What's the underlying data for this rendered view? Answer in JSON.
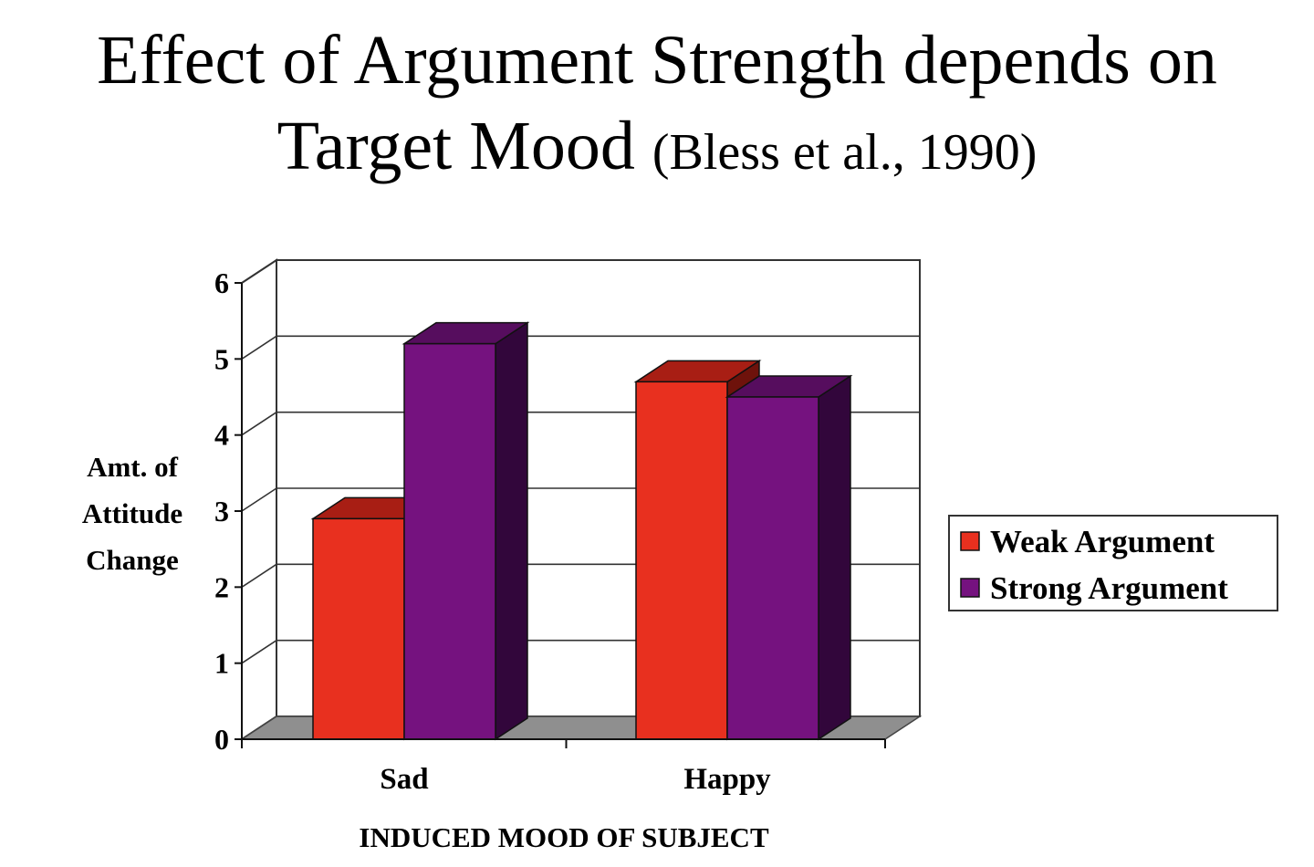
{
  "title": {
    "main_line1": "Effect of Argument Strength depends on",
    "main_line2": "Target Mood",
    "citation": "(Bless et al., 1990)"
  },
  "colors": {
    "weak": "#e8301f",
    "weak_top": "#a81e14",
    "weak_side": "#6e120b",
    "strong": "#75127f",
    "strong_top": "#560d5e",
    "strong_side": "#32063b",
    "floor": "#8f8f8f"
  },
  "chart_data": {
    "type": "bar",
    "title": "Effect of Argument Strength depends on Target Mood (Bless et al., 1990)",
    "categories": [
      "Sad",
      "Happy"
    ],
    "series": [
      {
        "name": "Weak Argument",
        "values": [
          2.9,
          4.7
        ]
      },
      {
        "name": "Strong Argument",
        "values": [
          5.2,
          4.5
        ]
      }
    ],
    "xlabel": "INDUCED MOOD OF SUBJECT",
    "ylabel_lines": [
      "Amt. of",
      "Attitude",
      "Change"
    ],
    "yticks": [
      "0",
      "1",
      "2",
      "3",
      "4",
      "5",
      "6"
    ],
    "ylim": [
      0,
      6
    ],
    "grid": true,
    "legend_position": "right",
    "style": "3d"
  }
}
